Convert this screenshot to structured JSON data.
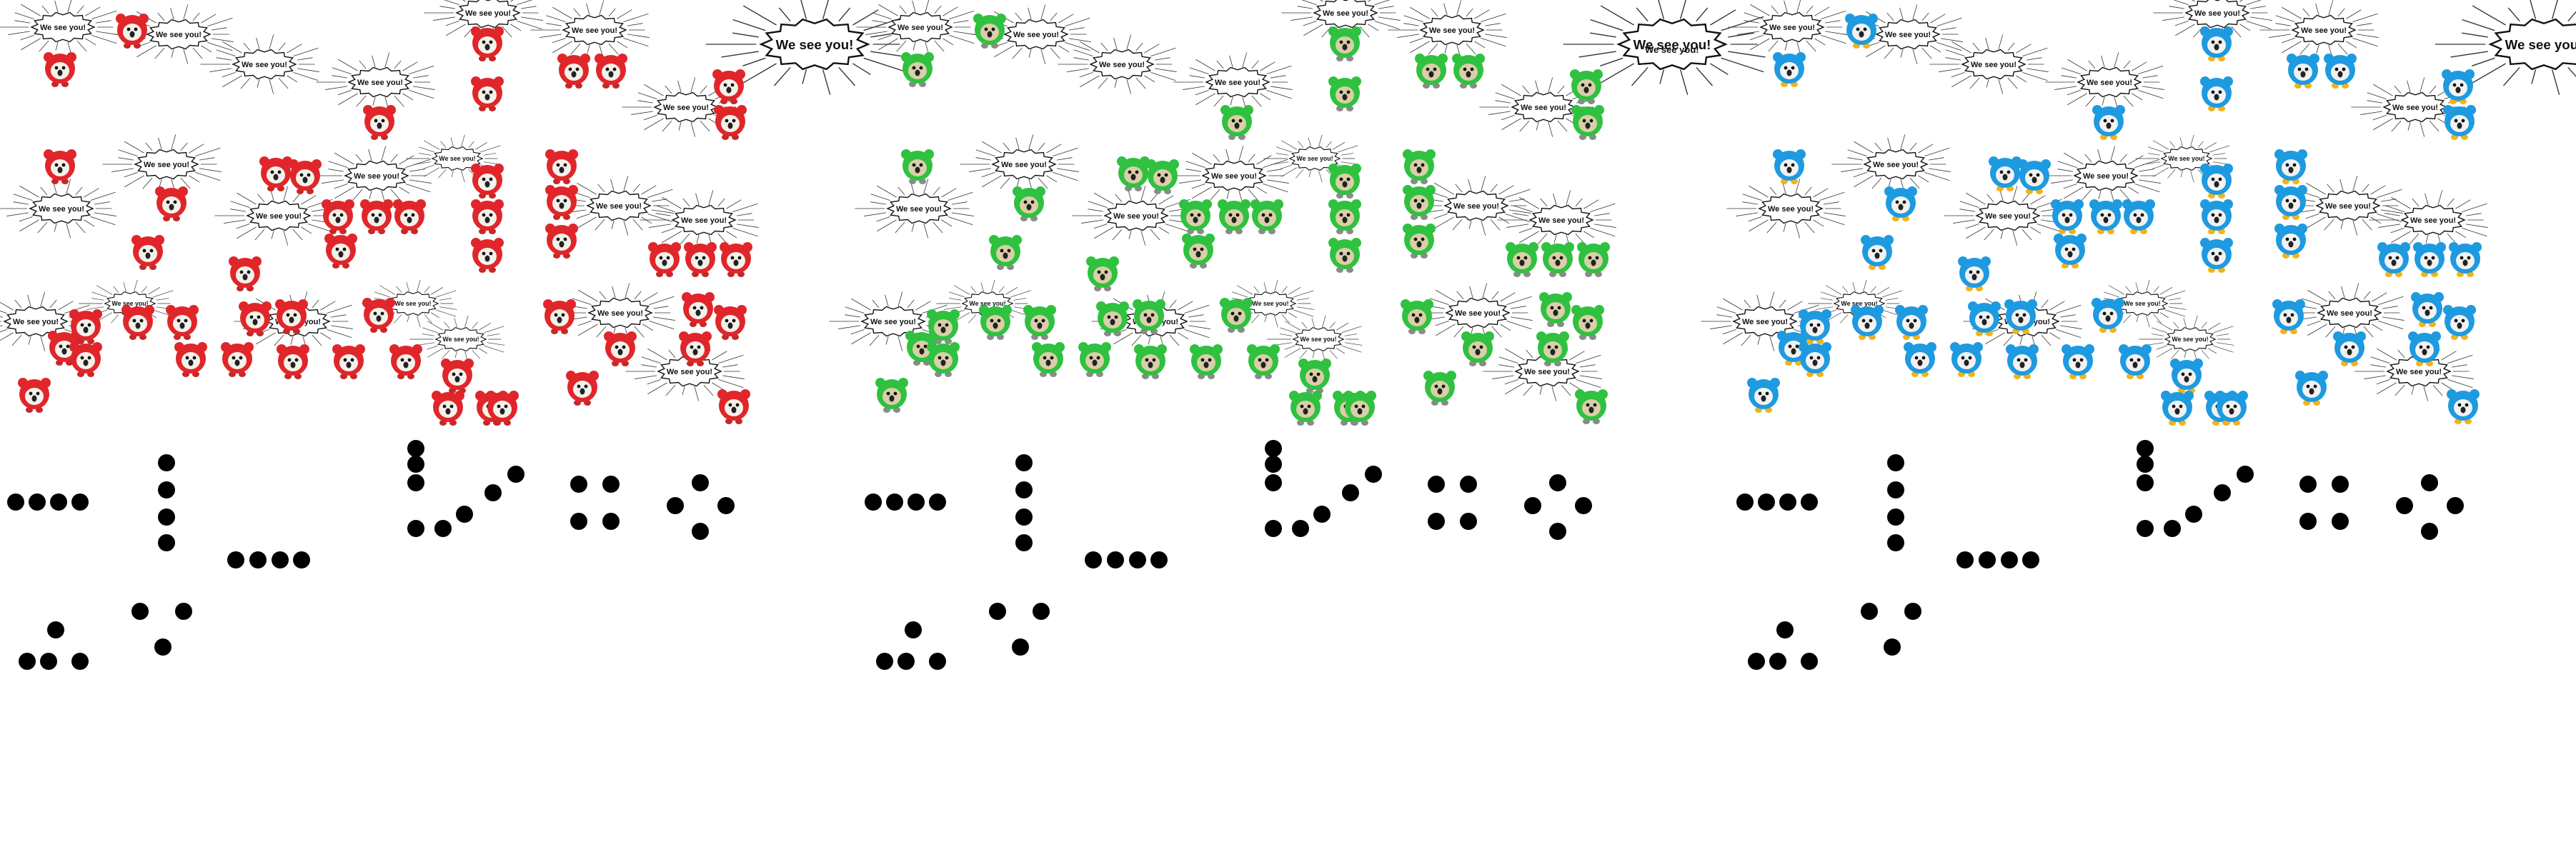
{
  "speech_bubble_text": "We see you!",
  "panels": [
    {
      "creature": "red-creature-icon",
      "body_color": "#e0262a",
      "face_color": "#f4f1ea",
      "feet_color": "#c62828"
    },
    {
      "creature": "green-creature-icon",
      "body_color": "#2fc13f",
      "face_color": "#d9cfa8",
      "feet_color": "#8a8a8a"
    },
    {
      "creature": "blue-creature-icon",
      "body_color": "#1e9ae0",
      "face_color": "#f2f2f2",
      "feet_color": "#f2b21b"
    }
  ],
  "dot_color": "#000000",
  "standalone_caption": "We see you!"
}
